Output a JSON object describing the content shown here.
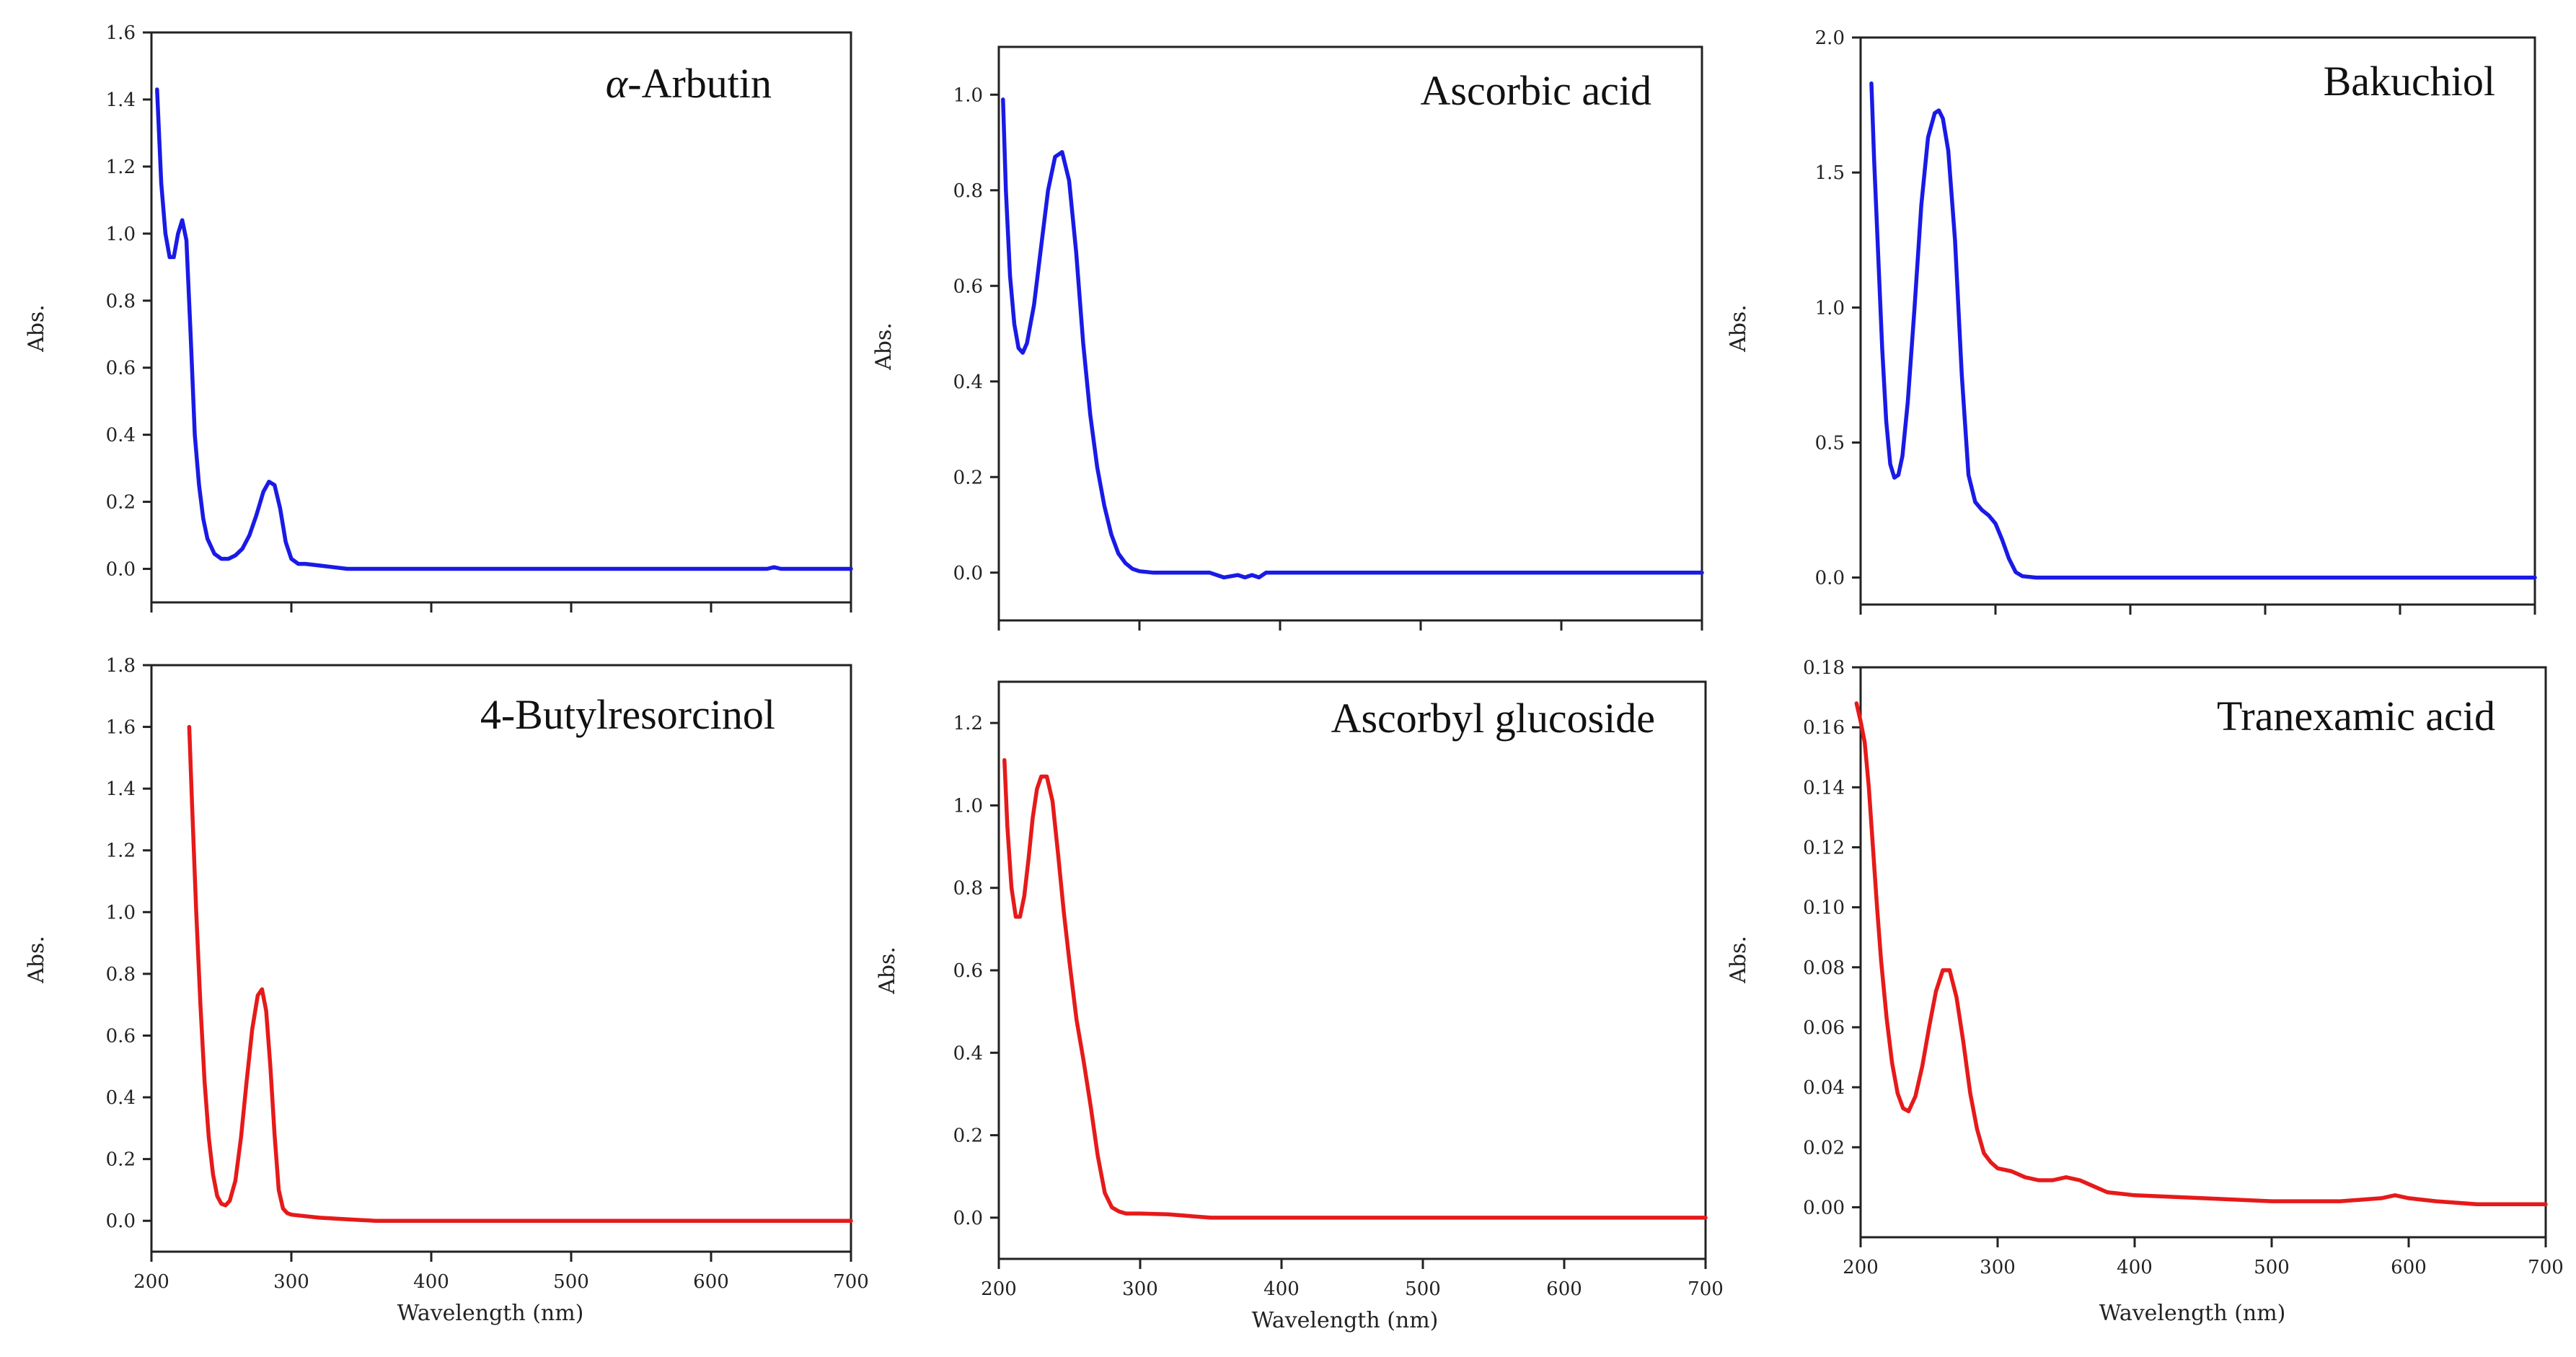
{
  "chart_data": [
    {
      "type": "line",
      "title": "α-Arbutin",
      "xlabel": "",
      "ylabel": "Abs.",
      "xlim": [
        200,
        700
      ],
      "ylim": [
        -0.1,
        1.6
      ],
      "xticks": [
        200,
        300,
        400,
        500,
        600,
        700
      ],
      "show_xtick_labels": false,
      "yticks": [
        0.0,
        0.2,
        0.4,
        0.6,
        0.8,
        1.0,
        1.2,
        1.4,
        1.6
      ],
      "ytick_labels": [
        "0.0",
        "0.2",
        "0.4",
        "0.6",
        "0.8",
        "1.0",
        "1.2",
        "1.4",
        "1.6"
      ],
      "color": "#1a1ae6",
      "x": [
        204,
        207,
        210,
        213,
        216,
        219,
        222,
        225,
        228,
        231,
        234,
        237,
        240,
        245,
        250,
        255,
        260,
        265,
        270,
        275,
        280,
        284,
        288,
        292,
        296,
        300,
        305,
        310,
        320,
        330,
        340,
        350,
        400,
        500,
        600,
        640,
        645,
        650,
        700
      ],
      "y": [
        1.43,
        1.15,
        1.0,
        0.93,
        0.93,
        1.0,
        1.04,
        0.98,
        0.7,
        0.4,
        0.25,
        0.15,
        0.09,
        0.045,
        0.03,
        0.03,
        0.04,
        0.06,
        0.1,
        0.16,
        0.23,
        0.26,
        0.25,
        0.18,
        0.08,
        0.03,
        0.015,
        0.015,
        0.01,
        0.005,
        0.0,
        0.0,
        0.0,
        0.0,
        0.0,
        0.0,
        0.005,
        0.0,
        0.0
      ]
    },
    {
      "type": "line",
      "title": "Ascorbic acid",
      "xlabel": "",
      "ylabel": "Abs.",
      "xlim": [
        200,
        700
      ],
      "ylim": [
        -0.1,
        1.1
      ],
      "xticks": [
        200,
        300,
        400,
        500,
        600,
        700
      ],
      "show_xtick_labels": false,
      "yticks": [
        0.0,
        0.2,
        0.4,
        0.6,
        0.8,
        1.0
      ],
      "ytick_labels": [
        "0.0",
        "0.2",
        "0.4",
        "0.6",
        "0.8",
        "1.0"
      ],
      "color": "#1a1ae6",
      "x": [
        203,
        205,
        208,
        211,
        214,
        217,
        220,
        225,
        230,
        235,
        240,
        245,
        250,
        255,
        260,
        265,
        270,
        275,
        280,
        285,
        290,
        295,
        300,
        310,
        320,
        350,
        360,
        370,
        375,
        380,
        385,
        390,
        400,
        500,
        600,
        700
      ],
      "y": [
        0.99,
        0.8,
        0.62,
        0.52,
        0.47,
        0.46,
        0.48,
        0.56,
        0.68,
        0.8,
        0.87,
        0.88,
        0.82,
        0.67,
        0.48,
        0.33,
        0.22,
        0.14,
        0.08,
        0.04,
        0.02,
        0.008,
        0.003,
        0.0,
        0.0,
        0.0,
        -0.01,
        -0.005,
        -0.01,
        -0.005,
        -0.01,
        0.0,
        0.0,
        0.0,
        0.0,
        0.0
      ]
    },
    {
      "type": "line",
      "title": "Bakuchiol",
      "xlabel": "",
      "ylabel": "Abs.",
      "xlim": [
        200,
        700
      ],
      "ylim": [
        -0.1,
        2.0
      ],
      "xticks": [
        200,
        300,
        400,
        500,
        600,
        700
      ],
      "show_xtick_labels": false,
      "yticks": [
        0.0,
        0.5,
        1.0,
        1.5,
        2.0
      ],
      "ytick_labels": [
        "0.0",
        "0.5",
        "1.0",
        "1.5",
        "2.0"
      ],
      "color": "#1a1ae6",
      "x": [
        208,
        210,
        213,
        216,
        219,
        222,
        225,
        228,
        231,
        235,
        240,
        245,
        250,
        255,
        258,
        261,
        265,
        270,
        275,
        280,
        285,
        290,
        295,
        300,
        305,
        310,
        315,
        320,
        330,
        400,
        500,
        600,
        700
      ],
      "y": [
        1.83,
        1.55,
        1.2,
        0.85,
        0.58,
        0.42,
        0.37,
        0.38,
        0.45,
        0.65,
        1.0,
        1.38,
        1.63,
        1.72,
        1.73,
        1.7,
        1.58,
        1.25,
        0.75,
        0.38,
        0.28,
        0.25,
        0.23,
        0.2,
        0.14,
        0.07,
        0.02,
        0.005,
        0.0,
        0.0,
        0.0,
        0.0,
        0.0
      ]
    },
    {
      "type": "line",
      "title": "4-Butylresorcinol",
      "xlabel": "Wavelength (nm)",
      "ylabel": "Abs.",
      "xlim": [
        200,
        700
      ],
      "ylim": [
        -0.1,
        1.8
      ],
      "xticks": [
        200,
        300,
        400,
        500,
        600,
        700
      ],
      "show_xtick_labels": true,
      "xtick_labels": [
        "200",
        "300",
        "400",
        "500",
        "600",
        "700"
      ],
      "yticks": [
        0.0,
        0.2,
        0.4,
        0.6,
        0.8,
        1.0,
        1.2,
        1.4,
        1.6,
        1.8
      ],
      "ytick_labels": [
        "0.0",
        "0.2",
        "0.4",
        "0.6",
        "0.8",
        "1.0",
        "1.2",
        "1.4",
        "1.6",
        "1.8"
      ],
      "color": "#e61a1a",
      "x": [
        227,
        229,
        232,
        235,
        238,
        241,
        244,
        247,
        250,
        253,
        256,
        260,
        264,
        268,
        272,
        276,
        279,
        282,
        285,
        288,
        291,
        294,
        297,
        300,
        310,
        320,
        340,
        360,
        400,
        500,
        600,
        700
      ],
      "y": [
        1.6,
        1.35,
        1.0,
        0.7,
        0.45,
        0.27,
        0.15,
        0.08,
        0.055,
        0.05,
        0.065,
        0.13,
        0.27,
        0.45,
        0.62,
        0.73,
        0.75,
        0.68,
        0.5,
        0.28,
        0.1,
        0.04,
        0.025,
        0.02,
        0.015,
        0.01,
        0.005,
        0.0,
        0.0,
        0.0,
        0.0,
        0.0
      ]
    },
    {
      "type": "line",
      "title": "Ascorbyl glucoside",
      "xlabel": "Wavelength (nm)",
      "ylabel": "Abs.",
      "xlim": [
        200,
        700
      ],
      "ylim": [
        -0.1,
        1.3
      ],
      "xticks": [
        200,
        300,
        400,
        500,
        600,
        700
      ],
      "show_xtick_labels": true,
      "xtick_labels": [
        "200",
        "300",
        "400",
        "500",
        "600",
        "700"
      ],
      "yticks": [
        0.0,
        0.2,
        0.4,
        0.6,
        0.8,
        1.0,
        1.2
      ],
      "ytick_labels": [
        "0.0",
        "0.2",
        "0.4",
        "0.6",
        "0.8",
        "1.0",
        "1.2"
      ],
      "color": "#e61a1a",
      "x": [
        204,
        206,
        209,
        212,
        215,
        218,
        221,
        224,
        227,
        230,
        234,
        238,
        242,
        246,
        250,
        255,
        260,
        265,
        270,
        275,
        280,
        285,
        290,
        295,
        300,
        320,
        350,
        400,
        500,
        600,
        700
      ],
      "y": [
        1.11,
        0.95,
        0.8,
        0.73,
        0.73,
        0.78,
        0.87,
        0.97,
        1.04,
        1.07,
        1.07,
        1.01,
        0.88,
        0.74,
        0.62,
        0.48,
        0.38,
        0.27,
        0.15,
        0.06,
        0.025,
        0.015,
        0.01,
        0.01,
        0.01,
        0.008,
        0.0,
        0.0,
        0.0,
        0.0,
        0.0
      ]
    },
    {
      "type": "line",
      "title": "Tranexamic acid",
      "xlabel": "Wavelength (nm)",
      "ylabel": "Abs.",
      "xlim": [
        200,
        700
      ],
      "ylim": [
        -0.01,
        0.18
      ],
      "xticks": [
        200,
        300,
        400,
        500,
        600,
        700
      ],
      "show_xtick_labels": true,
      "xtick_labels": [
        "200",
        "300",
        "400",
        "500",
        "600",
        "700"
      ],
      "yticks": [
        0.0,
        0.02,
        0.04,
        0.06,
        0.08,
        0.1,
        0.12,
        0.14,
        0.16,
        0.18
      ],
      "ytick_labels": [
        "0.00",
        "0.02",
        "0.04",
        "0.06",
        "0.08",
        "0.10",
        "0.12",
        "0.14",
        "0.16",
        "0.18"
      ],
      "color": "#e61a1a",
      "x": [
        197,
        200,
        203,
        206,
        209,
        212,
        215,
        219,
        223,
        227,
        231,
        235,
        240,
        245,
        250,
        255,
        260,
        265,
        270,
        275,
        280,
        285,
        290,
        295,
        300,
        310,
        320,
        330,
        340,
        350,
        360,
        370,
        380,
        400,
        450,
        500,
        550,
        580,
        590,
        600,
        620,
        650,
        700
      ],
      "y": [
        0.168,
        0.162,
        0.155,
        0.14,
        0.12,
        0.1,
        0.082,
        0.063,
        0.048,
        0.038,
        0.033,
        0.032,
        0.037,
        0.047,
        0.06,
        0.072,
        0.079,
        0.079,
        0.07,
        0.055,
        0.038,
        0.026,
        0.018,
        0.015,
        0.013,
        0.012,
        0.01,
        0.009,
        0.009,
        0.01,
        0.009,
        0.007,
        0.005,
        0.004,
        0.003,
        0.002,
        0.002,
        0.003,
        0.004,
        0.003,
        0.002,
        0.001,
        0.001
      ]
    }
  ]
}
